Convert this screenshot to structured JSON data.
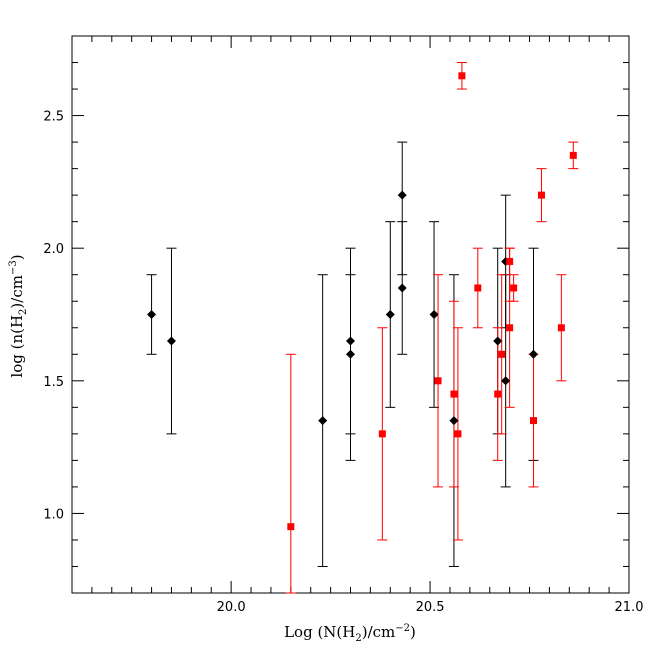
{
  "chart_data": {
    "type": "scatter",
    "title": "",
    "xlabel_parts": {
      "pre": "Log  (N(H",
      "sub": "2",
      "post": ")/cm",
      "sup": "−2",
      "end": ")"
    },
    "ylabel_parts": {
      "pre": "log  (n(H",
      "sub": "2",
      "post": ")/cm",
      "sup": "−3",
      "end": ")"
    },
    "xlim": [
      19.6,
      21.0
    ],
    "ylim": [
      0.7,
      2.8
    ],
    "x_ticks": [
      "20.0",
      "20.5",
      "21.0"
    ],
    "y_ticks": [
      "1.0",
      "1.5",
      "2.0",
      "2.5"
    ],
    "x_tick_values": [
      20.0,
      20.5,
      21.0
    ],
    "y_tick_values": [
      1.0,
      1.5,
      2.0,
      2.5
    ],
    "grid": false,
    "series": [
      {
        "marker": "diamond",
        "color": "#000000",
        "points": [
          {
            "x": 19.8,
            "y": 1.75,
            "ylo": 1.6,
            "yhi": 1.9
          },
          {
            "x": 19.85,
            "y": 1.65,
            "ylo": 1.3,
            "yhi": 2.0
          },
          {
            "x": 20.23,
            "y": 1.35,
            "ylo": 0.8,
            "yhi": 1.9
          },
          {
            "x": 20.3,
            "y": 1.65,
            "ylo": 1.3,
            "yhi": 2.0
          },
          {
            "x": 20.3,
            "y": 1.6,
            "ylo": 1.2,
            "yhi": 1.9
          },
          {
            "x": 20.4,
            "y": 1.75,
            "ylo": 1.4,
            "yhi": 2.1
          },
          {
            "x": 20.43,
            "y": 2.2,
            "ylo": 1.9,
            "yhi": 2.4
          },
          {
            "x": 20.43,
            "y": 1.85,
            "ylo": 1.6,
            "yhi": 2.1
          },
          {
            "x": 20.51,
            "y": 1.75,
            "ylo": 1.4,
            "yhi": 2.1
          },
          {
            "x": 20.56,
            "y": 1.35,
            "ylo": 0.8,
            "yhi": 1.9
          },
          {
            "x": 20.67,
            "y": 1.65,
            "ylo": 1.3,
            "yhi": 2.0
          },
          {
            "x": 20.69,
            "y": 1.95,
            "ylo": 1.7,
            "yhi": 2.2
          },
          {
            "x": 20.69,
            "y": 1.5,
            "ylo": 1.1,
            "yhi": 1.9
          },
          {
            "x": 20.76,
            "y": 1.6,
            "ylo": 1.2,
            "yhi": 2.0
          }
        ]
      },
      {
        "marker": "square",
        "color": "#ff0000",
        "points": [
          {
            "x": 20.15,
            "y": 0.95,
            "ylo": 0.7,
            "yhi": 1.6
          },
          {
            "x": 20.38,
            "y": 1.3,
            "ylo": 0.9,
            "yhi": 1.7
          },
          {
            "x": 20.52,
            "y": 1.5,
            "ylo": 1.1,
            "yhi": 1.9
          },
          {
            "x": 20.56,
            "y": 1.45,
            "ylo": 1.1,
            "yhi": 1.8
          },
          {
            "x": 20.57,
            "y": 1.3,
            "ylo": 0.9,
            "yhi": 1.7
          },
          {
            "x": 20.58,
            "y": 2.65,
            "ylo": 2.6,
            "yhi": 2.7
          },
          {
            "x": 20.62,
            "y": 1.85,
            "ylo": 1.7,
            "yhi": 2.0
          },
          {
            "x": 20.67,
            "y": 1.45,
            "ylo": 1.2,
            "yhi": 1.7
          },
          {
            "x": 20.68,
            "y": 1.6,
            "ylo": 1.3,
            "yhi": 1.9
          },
          {
            "x": 20.7,
            "y": 1.95,
            "ylo": 1.8,
            "yhi": 2.0
          },
          {
            "x": 20.7,
            "y": 1.7,
            "ylo": 1.4,
            "yhi": 2.0
          },
          {
            "x": 20.71,
            "y": 1.85,
            "ylo": 1.8,
            "yhi": 1.9
          },
          {
            "x": 20.76,
            "y": 1.35,
            "ylo": 1.1,
            "yhi": 1.6
          },
          {
            "x": 20.78,
            "y": 2.2,
            "ylo": 2.1,
            "yhi": 2.3
          },
          {
            "x": 20.83,
            "y": 1.7,
            "ylo": 1.5,
            "yhi": 1.9
          },
          {
            "x": 20.86,
            "y": 2.35,
            "ylo": 2.3,
            "yhi": 2.4
          }
        ]
      }
    ]
  }
}
